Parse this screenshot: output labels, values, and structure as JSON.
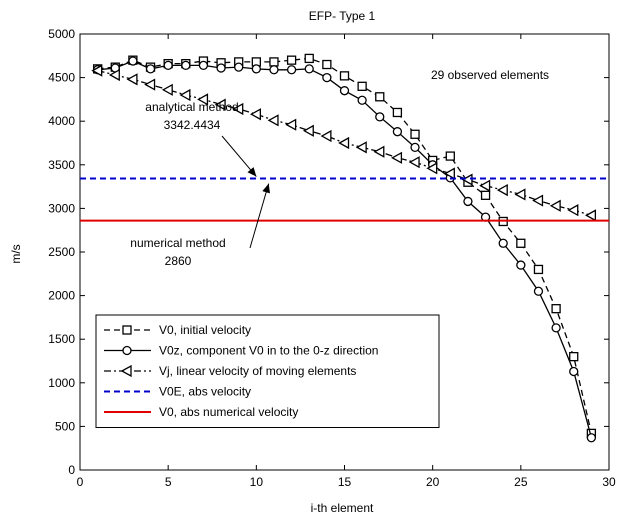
{
  "chart_data": {
    "type": "line",
    "title": "EFP- Type 1",
    "xlabel": "i-th element",
    "ylabel": "m/s",
    "xlim": [
      0,
      30
    ],
    "ylim": [
      0,
      5000
    ],
    "xticks": [
      "0",
      "5",
      "10",
      "15",
      "20",
      "25",
      "30"
    ],
    "yticks": [
      "0",
      "500",
      "1000",
      "1500",
      "2000",
      "2500",
      "3000",
      "3500",
      "4000",
      "4500",
      "5000"
    ],
    "grid": false,
    "legend_position": "bottom-left",
    "annotations": {
      "observed": "29 observed elements",
      "analytical_label": "analytical method",
      "analytical_value": "3342.4434",
      "numerical_label": "numerical method",
      "numerical_value": "2860"
    },
    "series": [
      {
        "name": "V0, initial velocity",
        "style": "dashed",
        "marker": "square",
        "color": "#000000",
        "x": [
          1,
          2,
          3,
          4,
          5,
          6,
          7,
          8,
          9,
          10,
          11,
          12,
          13,
          14,
          15,
          16,
          17,
          18,
          19,
          20,
          21,
          22,
          23,
          24,
          25,
          26,
          27,
          28,
          29
        ],
        "y": [
          4600,
          4620,
          4700,
          4620,
          4660,
          4660,
          4690,
          4670,
          4680,
          4680,
          4680,
          4700,
          4720,
          4650,
          4520,
          4400,
          4280,
          4100,
          3850,
          3550,
          3600,
          3300,
          3150,
          2850,
          2600,
          2300,
          1850,
          1300,
          420
        ]
      },
      {
        "name": "V0z, component V0 in to the 0-z direction",
        "style": "solid",
        "marker": "circle",
        "color": "#000000",
        "x": [
          1,
          2,
          3,
          4,
          5,
          6,
          7,
          8,
          9,
          10,
          11,
          12,
          13,
          14,
          15,
          16,
          17,
          18,
          19,
          20,
          21,
          22,
          23,
          24,
          25,
          26,
          27,
          28,
          29
        ],
        "y": [
          4590,
          4610,
          4690,
          4600,
          4640,
          4640,
          4640,
          4610,
          4620,
          4600,
          4590,
          4590,
          4600,
          4500,
          4350,
          4240,
          4050,
          3880,
          3700,
          3500,
          3350,
          3080,
          2900,
          2600,
          2350,
          2050,
          1630,
          1130,
          370
        ]
      },
      {
        "name": "Vj, linear velocity of moving elements",
        "style": "dashdot",
        "marker": "triangle-left",
        "color": "#000000",
        "x": [
          1,
          2,
          3,
          4,
          5,
          6,
          7,
          8,
          9,
          10,
          11,
          12,
          13,
          14,
          15,
          16,
          17,
          18,
          19,
          20,
          21,
          22,
          23,
          24,
          25,
          26,
          27,
          28,
          29
        ],
        "y": [
          4580,
          4530,
          4480,
          4420,
          4360,
          4300,
          4250,
          4190,
          4140,
          4080,
          4010,
          3960,
          3890,
          3830,
          3750,
          3700,
          3650,
          3580,
          3530,
          3460,
          3400,
          3330,
          3260,
          3210,
          3160,
          3090,
          3030,
          2980,
          2920
        ]
      },
      {
        "name": "V0E, abs velocity",
        "style": "dashed",
        "marker": "none",
        "color": "#0000cc",
        "x": [
          0,
          30
        ],
        "y": [
          3342.4434,
          3342.4434
        ]
      },
      {
        "name": "V0, abs numerical velocity",
        "style": "solid",
        "marker": "none",
        "color": "#e00000",
        "x": [
          0,
          30
        ],
        "y": [
          2860,
          2860
        ]
      }
    ]
  }
}
